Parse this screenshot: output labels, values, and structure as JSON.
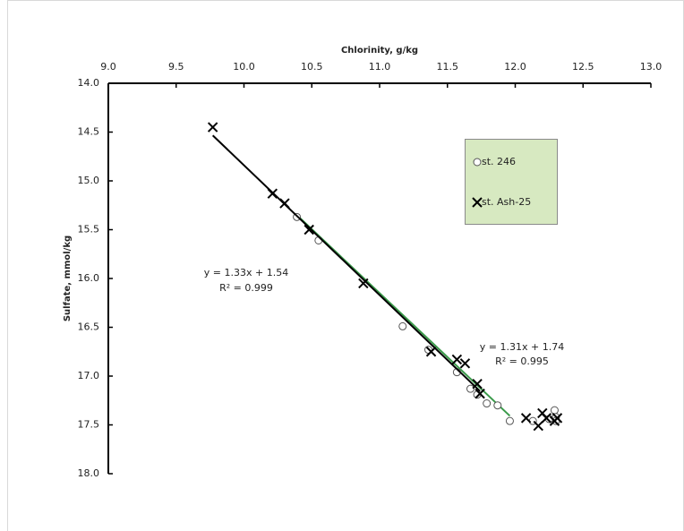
{
  "chart_data": {
    "type": "scatter",
    "x_label": "Chlorinity, g/kg",
    "y_label": "Sulfate, mmol/kg",
    "x_axis_position": "top",
    "y_inverted": true,
    "xlim": [
      9.0,
      13.0
    ],
    "xticks": [
      {
        "value": 9.0,
        "label": "9.0"
      },
      {
        "value": 9.5,
        "label": "9.5"
      },
      {
        "value": 10.0,
        "label": "10.0"
      },
      {
        "value": 10.5,
        "label": "10.5"
      },
      {
        "value": 11.0,
        "label": "11.0"
      },
      {
        "value": 11.5,
        "label": "11.5"
      },
      {
        "value": 12.0,
        "label": "12.0"
      },
      {
        "value": 12.5,
        "label": "12.5"
      },
      {
        "value": 13.0,
        "label": "13.0"
      }
    ],
    "ylim": [
      14.0,
      18.0
    ],
    "yticks": [
      {
        "value": 14.0,
        "label": "14.0"
      },
      {
        "value": 14.5,
        "label": "14.5"
      },
      {
        "value": 15.0,
        "label": "15.0"
      },
      {
        "value": 15.5,
        "label": "15.5"
      },
      {
        "value": 16.0,
        "label": "16.0"
      },
      {
        "value": 16.5,
        "label": "16.5"
      },
      {
        "value": 17.0,
        "label": "17.0"
      },
      {
        "value": 17.5,
        "label": "17.5"
      },
      {
        "value": 18.0,
        "label": "18.0"
      }
    ],
    "legend": "upper right",
    "series": [
      {
        "name": "st. 246",
        "marker": "circle",
        "color": "#555555",
        "trendline_color": "#3a9a4a",
        "trendline": {
          "equation": "y = 1.31x + 1.74",
          "r2": "R² = 0.995"
        },
        "x": [
          10.39,
          10.55,
          11.17,
          11.36,
          11.57,
          11.67,
          11.72,
          11.79,
          11.87,
          11.96,
          12.13,
          12.29,
          12.3,
          12.3,
          12.25
        ],
        "values": [
          15.37,
          15.61,
          16.49,
          16.73,
          16.96,
          17.13,
          17.19,
          17.28,
          17.3,
          17.46,
          17.46,
          17.35,
          17.42,
          17.46,
          17.44
        ]
      },
      {
        "name": "st. Ash-25",
        "marker": "cross",
        "color": "#000000",
        "trendline_color": "#000000",
        "trendline": {
          "equation": "y = 1.33x + 1.54",
          "r2": "R² = 0.999"
        },
        "x": [
          9.77,
          10.21,
          10.3,
          10.48,
          10.88,
          11.38,
          11.57,
          11.63,
          11.72,
          11.74,
          12.08,
          12.17,
          12.2,
          12.23,
          12.29,
          12.31
        ],
        "values": [
          14.45,
          15.13,
          15.23,
          15.5,
          16.05,
          16.75,
          16.83,
          16.87,
          17.08,
          17.18,
          17.43,
          17.51,
          17.38,
          17.43,
          17.46,
          17.43
        ]
      }
    ]
  }
}
